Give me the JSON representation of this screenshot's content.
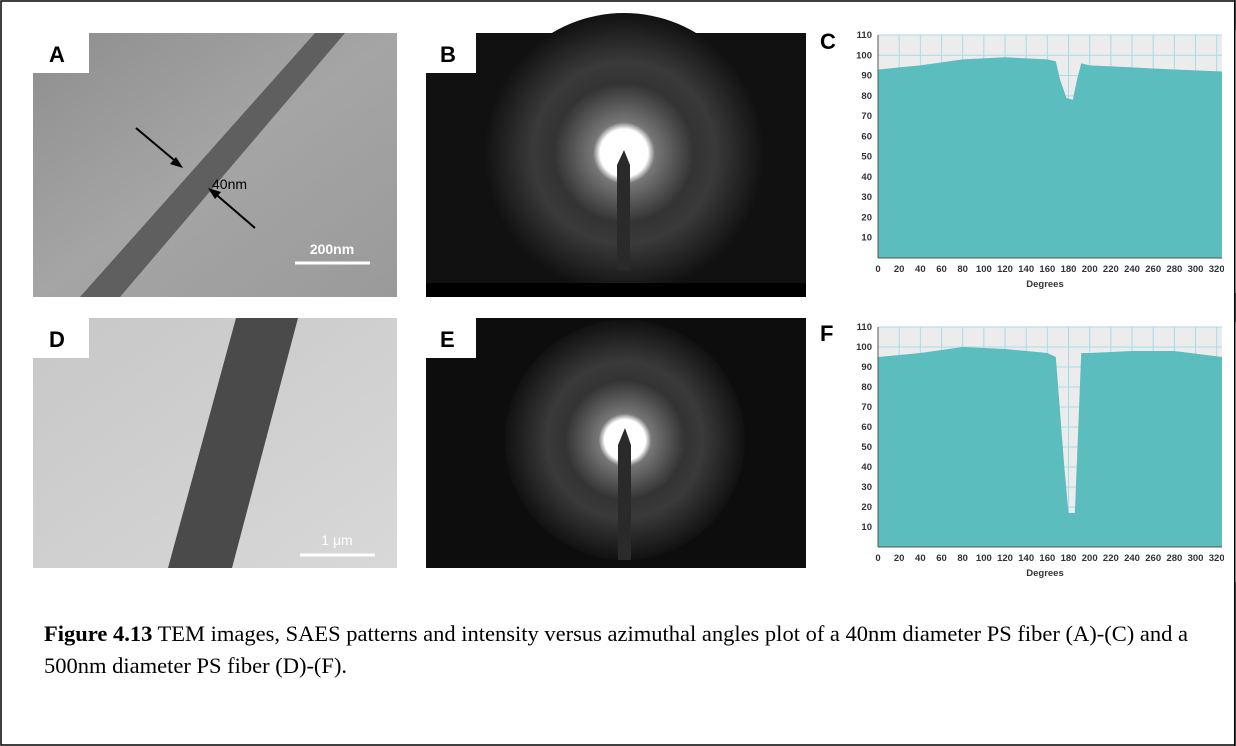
{
  "images": [
    {
      "label": "A",
      "annotations": [
        "40nm",
        "200nm"
      ]
    },
    {
      "label": "B"
    },
    {
      "label": "D",
      "annotations": [
        "1 μm"
      ]
    },
    {
      "label": "E"
    }
  ],
  "chart_data": [
    {
      "type": "area",
      "label": "C",
      "x_label": "Degrees",
      "x": [
        0,
        40,
        80,
        120,
        160,
        168,
        172,
        178,
        184,
        188,
        192,
        200,
        240,
        280,
        325
      ],
      "values": [
        93,
        95,
        98,
        99,
        98,
        97,
        88,
        79,
        78,
        88,
        96,
        95,
        94,
        93,
        92
      ],
      "color": "#5bbdbd",
      "xlim": [
        0,
        325
      ],
      "xticks": [
        0,
        20,
        40,
        60,
        80,
        100,
        120,
        140,
        160,
        180,
        200,
        220,
        240,
        260,
        280,
        300,
        320
      ],
      "ylim": [
        0,
        110
      ],
      "yticks": [
        10,
        20,
        30,
        40,
        50,
        60,
        70,
        80,
        90,
        100,
        110
      ],
      "grid": true
    },
    {
      "type": "area",
      "label": "F",
      "x_label": "Degrees",
      "x": [
        0,
        40,
        80,
        120,
        160,
        168,
        176,
        180,
        186,
        192,
        200,
        240,
        280,
        325
      ],
      "values": [
        95,
        97,
        100,
        99,
        97,
        95,
        40,
        17,
        17,
        97,
        97,
        98,
        98,
        95
      ],
      "color": "#5bbdbd",
      "xlim": [
        0,
        325
      ],
      "xticks": [
        0,
        20,
        40,
        60,
        80,
        100,
        120,
        140,
        160,
        180,
        200,
        220,
        240,
        260,
        280,
        300,
        320
      ],
      "ylim": [
        0,
        110
      ],
      "yticks": [
        10,
        20,
        30,
        40,
        50,
        60,
        70,
        80,
        90,
        100,
        110
      ],
      "grid": true
    }
  ],
  "caption": {
    "label": "Figure 4.13",
    "text": "TEM images, SAES patterns and intensity versus azimuthal angles plot of  a 40nm diameter PS fiber (A)-(C) and a 500nm diameter PS fiber (D)-(F)."
  }
}
